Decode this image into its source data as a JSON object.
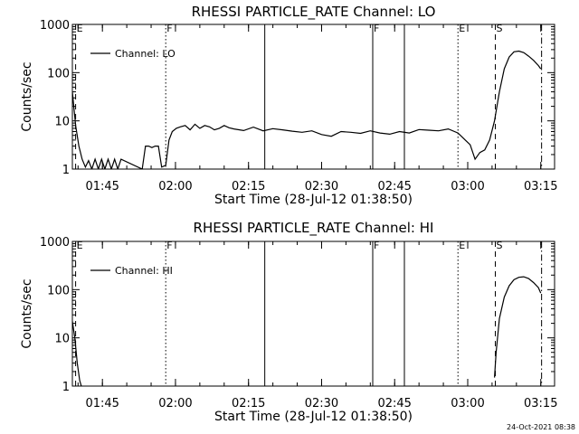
{
  "footer_timestamp": "24-Oct-2021 08:38",
  "chart_data": [
    {
      "type": "line",
      "title": "RHESSI PARTICLE_RATE Channel: LO",
      "xlabel": "Start Time (28-Jul-12 01:38:50)",
      "ylabel": "Counts/sec",
      "yscale": "log",
      "ylim": [
        1,
        1000
      ],
      "xlim": [
        "01:38:50",
        "03:17:50"
      ],
      "x_ticks": [
        "01:45",
        "02:00",
        "02:15",
        "02:30",
        "02:45",
        "03:00",
        "03:15"
      ],
      "y_ticks": [
        "1",
        "10",
        "100",
        "1000"
      ],
      "legend": "Channel: LO",
      "legend_position": "top-left",
      "series": [
        {
          "name": "Channel: LO",
          "x": [
            "01:38:50",
            "01:39:30",
            "01:40:10",
            "01:40:50",
            "01:41:30",
            "01:42:10",
            "01:42:50",
            "01:43:30",
            "01:44:10",
            "01:44:50",
            "01:45:30",
            "01:46:10",
            "01:46:50",
            "01:47:30",
            "01:48:10",
            "01:48:50",
            "01:53:10",
            "01:53:50",
            "01:54:30",
            "01:55:10",
            "01:55:50",
            "01:56:30",
            "01:57:10",
            "01:58:00",
            "01:58:40",
            "01:59:20",
            "02:00:10",
            "02:01:00",
            "02:02:00",
            "02:03:00",
            "02:04:00",
            "02:05:00",
            "02:06:00",
            "02:07:00",
            "02:08:00",
            "02:09:00",
            "02:10:00",
            "02:11:00",
            "02:12:00",
            "02:14:00",
            "02:16:00",
            "02:18:00",
            "02:20:00",
            "02:22:00",
            "02:24:00",
            "02:26:00",
            "02:28:00",
            "02:30:00",
            "02:32:00",
            "02:34:00",
            "02:36:00",
            "02:38:00",
            "02:40:00",
            "02:42:00",
            "02:44:00",
            "02:46:00",
            "02:48:00",
            "02:50:00",
            "02:52:00",
            "02:54:00",
            "02:56:00",
            "02:58:00",
            "02:59:30",
            "03:00:30",
            "03:01:30",
            "03:02:30",
            "03:03:30",
            "03:04:30",
            "03:05:30",
            "03:06:30",
            "03:07:30",
            "03:08:30",
            "03:09:30",
            "03:10:30",
            "03:11:30",
            "03:12:30",
            "03:13:30",
            "03:14:30",
            "03:15:00"
          ],
          "y": [
            40,
            8,
            3,
            1.6,
            1.1,
            1.5,
            1,
            1.6,
            1,
            1.6,
            1,
            1.6,
            1,
            1.6,
            1,
            1.6,
            1,
            3,
            3,
            2.8,
            3,
            3,
            1.1,
            1.2,
            4,
            6,
            7,
            7.5,
            8,
            6.5,
            8.5,
            7,
            8,
            7.5,
            6.5,
            7,
            8,
            7.2,
            6.8,
            6.3,
            7.4,
            6.2,
            6.9,
            6.5,
            6.1,
            5.8,
            6.2,
            5.2,
            4.8,
            6,
            5.8,
            5.5,
            6.2,
            5.6,
            5.3,
            6,
            5.6,
            6.6,
            6.4,
            6.2,
            6.8,
            5.6,
            4,
            3.2,
            1.6,
            2.2,
            2.5,
            4,
            10,
            40,
            120,
            210,
            270,
            280,
            260,
            220,
            180,
            140,
            120
          ]
        }
      ],
      "annotations": [
        {
          "label": "E",
          "time": "01:39:30",
          "style": "dashed"
        },
        {
          "label": "F",
          "time": "01:58:00",
          "style": "dotted"
        },
        {
          "label": "F",
          "time": "02:40:30",
          "style": "solid"
        },
        {
          "label": "E",
          "time": "02:58:00",
          "style": "dotted"
        },
        {
          "label": "S",
          "time": "03:05:40",
          "style": "dashed"
        }
      ]
    },
    {
      "type": "line",
      "title": "RHESSI PARTICLE_RATE Channel: HI",
      "xlabel": "Start Time (28-Jul-12 01:38:50)",
      "ylabel": "Counts/sec",
      "yscale": "log",
      "ylim": [
        1,
        1000
      ],
      "xlim": [
        "01:38:50",
        "03:17:50"
      ],
      "x_ticks": [
        "01:45",
        "02:00",
        "02:15",
        "02:30",
        "02:45",
        "03:00",
        "03:15"
      ],
      "y_ticks": [
        "1",
        "10",
        "100",
        "1000"
      ],
      "legend": "Channel: HI",
      "legend_position": "top-left",
      "series": [
        {
          "name": "Channel: HI",
          "x": [
            "01:38:50",
            "01:39:20",
            "01:39:50",
            "01:40:20",
            "01:40:40",
            "03:05:30",
            "03:05:50",
            "03:06:30",
            "03:07:30",
            "03:08:30",
            "03:09:30",
            "03:10:30",
            "03:11:30",
            "03:12:30",
            "03:13:30",
            "03:14:30",
            "03:15:00"
          ],
          "y": [
            22,
            10,
            3,
            1.3,
            1,
            1.5,
            5,
            25,
            70,
            120,
            160,
            180,
            185,
            170,
            140,
            110,
            85
          ]
        }
      ],
      "annotations": [
        {
          "label": "E",
          "time": "01:39:30",
          "style": "dashed"
        },
        {
          "label": "F",
          "time": "01:58:00",
          "style": "dotted"
        },
        {
          "label": "F",
          "time": "02:40:30",
          "style": "solid"
        },
        {
          "label": "E",
          "time": "02:58:00",
          "style": "dotted"
        },
        {
          "label": "S",
          "time": "03:05:40",
          "style": "dashed"
        }
      ]
    }
  ]
}
